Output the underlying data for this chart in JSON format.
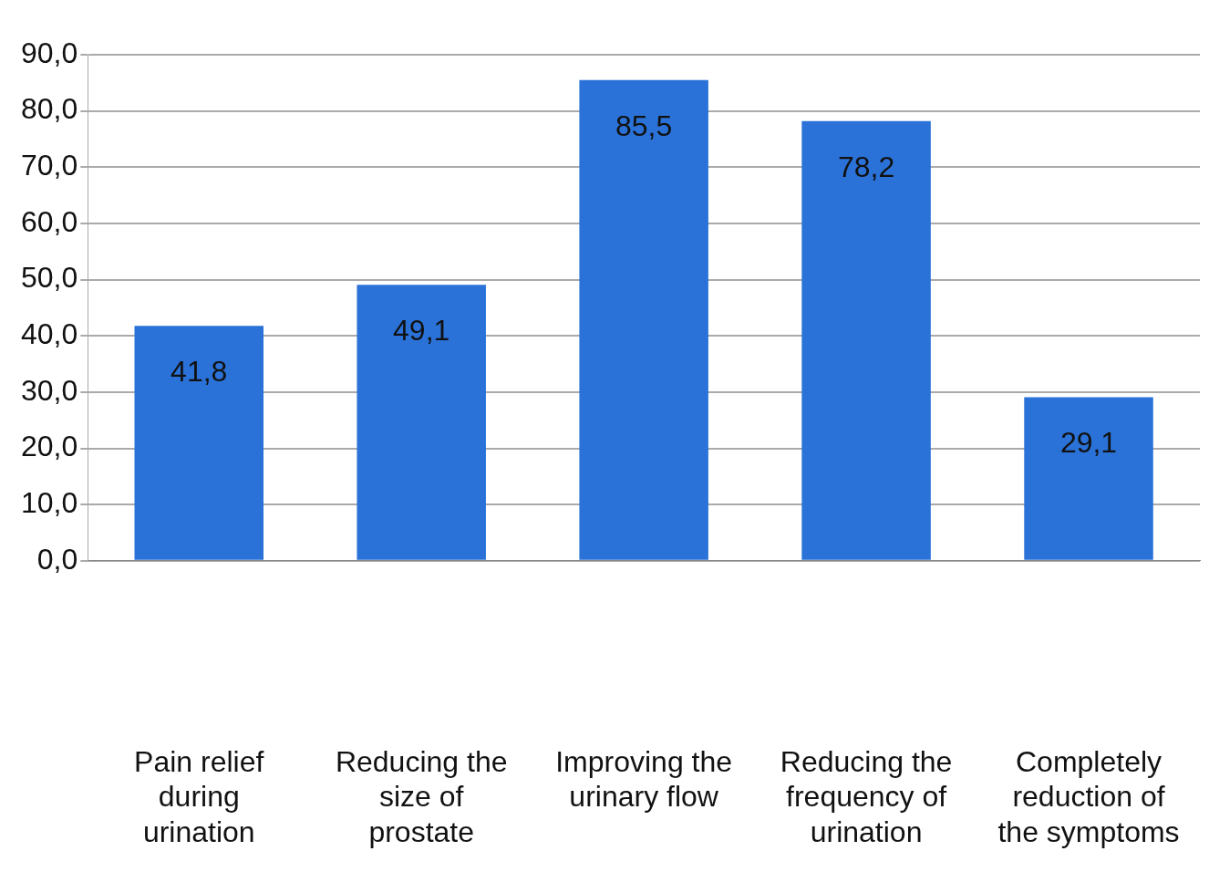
{
  "chart_data": {
    "type": "bar",
    "categories": [
      "Pain relief during urination",
      "Reducing the size of prostate",
      "Improving the urinary flow",
      "Reducing the frequency of urination",
      "Completely reduction of the symptoms"
    ],
    "values": [
      41.8,
      49.1,
      85.5,
      78.2,
      29.1
    ],
    "value_labels": [
      "41,8",
      "49,1",
      "85,5",
      "78,2",
      "29,1"
    ],
    "color": "#2a72d8",
    "ylim": [
      0,
      90
    ],
    "yticks": [
      {
        "value": 0,
        "label": "0,0"
      },
      {
        "value": 10,
        "label": "10,0"
      },
      {
        "value": 20,
        "label": "20,0"
      },
      {
        "value": 30,
        "label": "30,0"
      },
      {
        "value": 40,
        "label": "40,0"
      },
      {
        "value": 50,
        "label": "50,0"
      },
      {
        "value": 60,
        "label": "60,0"
      },
      {
        "value": 70,
        "label": "70,0"
      },
      {
        "value": 80,
        "label": "80,0"
      },
      {
        "value": 90,
        "label": "90,0"
      }
    ],
    "grid": "y",
    "legend": false
  }
}
